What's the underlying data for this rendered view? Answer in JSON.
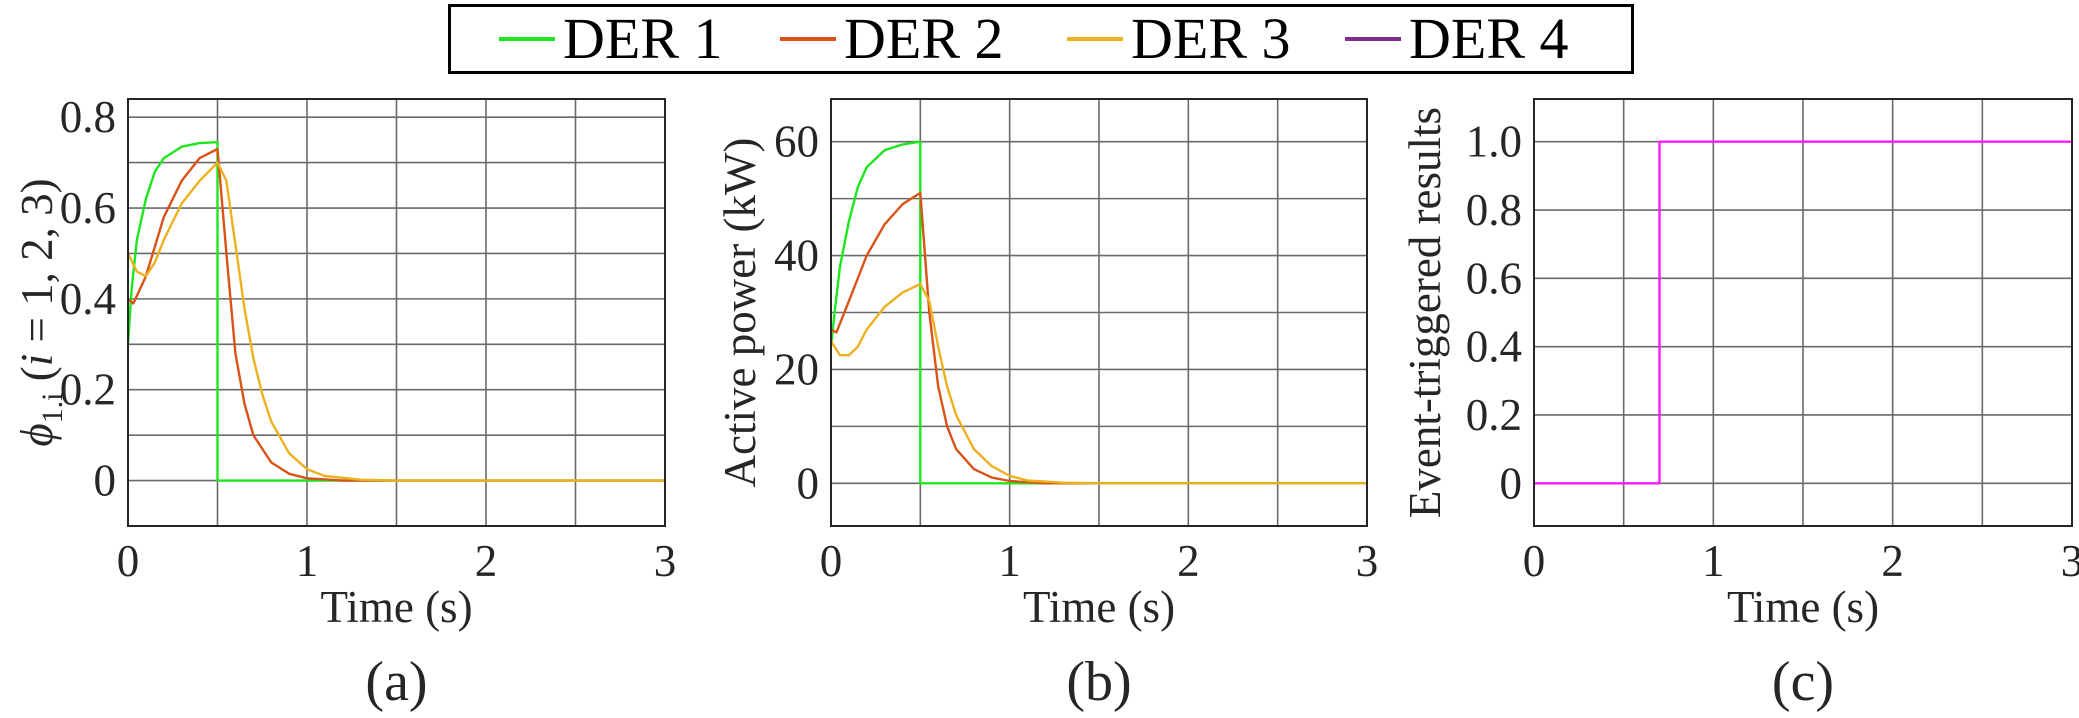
{
  "legend": [
    {
      "label": "DER 1",
      "color": "#1ee61e"
    },
    {
      "label": "DER 2",
      "color": "#d95319"
    },
    {
      "label": "DER 3",
      "color": "#edb120"
    },
    {
      "label": "DER 4",
      "color": "#7e2f8e"
    }
  ],
  "chart_data": [
    {
      "type": "line",
      "panel_label": "(a)",
      "xlabel": "Time (s)",
      "ylabel": {
        "symbol": "ϕ",
        "subscript": "1.i",
        "rest_open": " (",
        "var": "i",
        "rest": " = 1, 2, 3)"
      },
      "xlim": [
        0,
        3
      ],
      "ylim": [
        -0.1,
        0.84
      ],
      "xticks": [
        "0",
        "1",
        "2",
        "3"
      ],
      "xtick_values": [
        0,
        1,
        2,
        3
      ],
      "yticks": [
        "0",
        "0.2",
        "0.4",
        "0.6",
        "0.8"
      ],
      "ytick_values": [
        0,
        0.2,
        0.4,
        0.6,
        0.8
      ],
      "xgrid_step": 0.5,
      "ygrid_step": 0.1,
      "grid": true,
      "series": [
        {
          "name": "DER 1",
          "color": "#1ee61e",
          "x": [
            0,
            0.02,
            0.05,
            0.1,
            0.15,
            0.2,
            0.3,
            0.4,
            0.5,
            0.5,
            3
          ],
          "y": [
            0.3,
            0.42,
            0.53,
            0.62,
            0.68,
            0.71,
            0.735,
            0.743,
            0.745,
            0,
            0
          ]
        },
        {
          "name": "DER 2",
          "color": "#d95319",
          "x": [
            0,
            0.03,
            0.1,
            0.2,
            0.3,
            0.4,
            0.5,
            0.55,
            0.6,
            0.65,
            0.7,
            0.8,
            0.9,
            1.0,
            1.2,
            3
          ],
          "y": [
            0.4,
            0.39,
            0.45,
            0.58,
            0.66,
            0.71,
            0.73,
            0.5,
            0.28,
            0.17,
            0.1,
            0.04,
            0.015,
            0.005,
            0,
            0
          ]
        },
        {
          "name": "DER 3",
          "color": "#edb120",
          "x": [
            0,
            0.05,
            0.1,
            0.15,
            0.2,
            0.3,
            0.4,
            0.5,
            0.55,
            0.6,
            0.65,
            0.7,
            0.75,
            0.8,
            0.9,
            1.0,
            1.1,
            1.3,
            1.5,
            3
          ],
          "y": [
            0.5,
            0.46,
            0.45,
            0.48,
            0.53,
            0.61,
            0.66,
            0.7,
            0.66,
            0.52,
            0.38,
            0.27,
            0.19,
            0.13,
            0.06,
            0.025,
            0.01,
            0.002,
            0,
            0
          ]
        }
      ]
    },
    {
      "type": "line",
      "panel_label": "(b)",
      "xlabel": "Time (s)",
      "ylabel": "Active power (kW)",
      "xlim": [
        0,
        3
      ],
      "ylim": [
        -7.5,
        67.5
      ],
      "xticks": [
        "0",
        "1",
        "2",
        "3"
      ],
      "xtick_values": [
        0,
        1,
        2,
        3
      ],
      "yticks": [
        "0",
        "20",
        "40",
        "60"
      ],
      "ytick_values": [
        0,
        20,
        40,
        60
      ],
      "xgrid_step": 0.5,
      "ygrid_step": 10,
      "grid": true,
      "series": [
        {
          "name": "DER 1",
          "color": "#1ee61e",
          "x": [
            0,
            0.02,
            0.05,
            0.1,
            0.15,
            0.2,
            0.3,
            0.4,
            0.5,
            0.5,
            3
          ],
          "y": [
            24,
            30,
            38,
            46,
            52,
            55.5,
            58.5,
            59.5,
            60,
            0,
            0
          ]
        },
        {
          "name": "DER 2",
          "color": "#d95319",
          "x": [
            0,
            0.03,
            0.1,
            0.2,
            0.3,
            0.4,
            0.5,
            0.55,
            0.6,
            0.65,
            0.7,
            0.8,
            0.9,
            1.0,
            1.2,
            3
          ],
          "y": [
            27,
            26.5,
            32,
            40,
            45.5,
            49,
            51,
            30,
            17,
            10,
            6,
            2.5,
            1,
            0.4,
            0,
            0
          ]
        },
        {
          "name": "DER 3",
          "color": "#edb120",
          "x": [
            0,
            0.05,
            0.1,
            0.15,
            0.2,
            0.3,
            0.4,
            0.5,
            0.55,
            0.6,
            0.65,
            0.7,
            0.8,
            0.9,
            1.0,
            1.1,
            1.3,
            1.5,
            3
          ],
          "y": [
            25,
            22.5,
            22.5,
            24,
            27,
            31,
            33.5,
            35,
            32,
            24,
            17,
            12,
            6,
            3,
            1.3,
            0.5,
            0.1,
            0,
            0
          ]
        }
      ]
    },
    {
      "type": "line",
      "panel_label": "(c)",
      "xlabel": "Time (s)",
      "ylabel": "Event-triggered results",
      "xlim": [
        0,
        3
      ],
      "ylim": [
        -0.125,
        1.125
      ],
      "xticks": [
        "0",
        "1",
        "2",
        "3"
      ],
      "xtick_values": [
        0,
        1,
        2,
        3
      ],
      "yticks": [
        "0",
        "0.2",
        "0.4",
        "0.6",
        "0.8",
        "1.0"
      ],
      "ytick_values": [
        0,
        0.2,
        0.4,
        0.6,
        0.8,
        1.0
      ],
      "xgrid_step": 0.5,
      "ygrid_step": 0.2,
      "grid": true,
      "series": [
        {
          "name": "DER 4",
          "color": "#ff1aff",
          "x": [
            0,
            0.7,
            0.7,
            3
          ],
          "y": [
            0,
            0,
            1,
            1
          ]
        }
      ]
    }
  ]
}
